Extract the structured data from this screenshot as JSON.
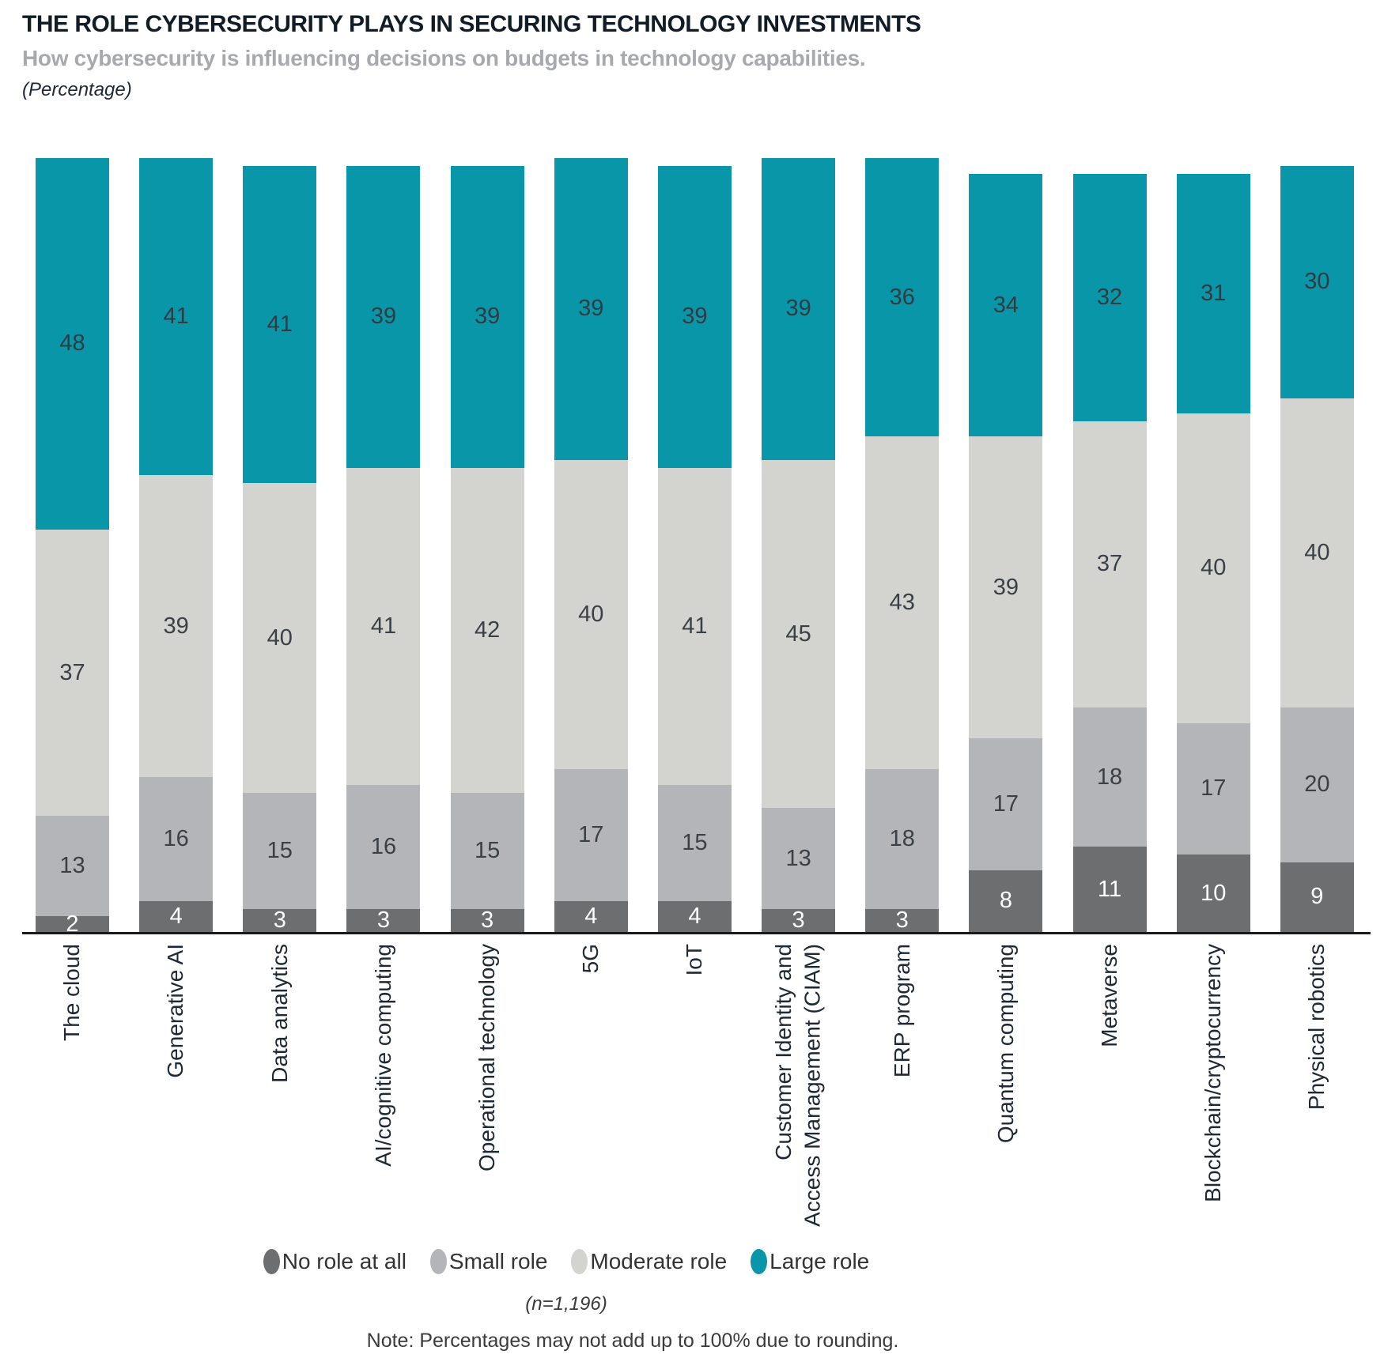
{
  "header": {
    "title": "THE ROLE CYBERSECURITY PLAYS IN SECURING TECHNOLOGY INVESTMENTS",
    "subtitle": "How cybersecurity is influencing decisions on budgets in technology capabilities.",
    "unit_note": "(Percentage)"
  },
  "chart_data": {
    "type": "bar",
    "stacked": true,
    "grid": false,
    "ylim": [
      0,
      100
    ],
    "legend_position": "bottom",
    "categories": [
      "The cloud",
      "Generative AI",
      "Data analytics",
      "AI/cognitive computing",
      "Operational technology",
      "5G",
      "IoT",
      "Customer Identity and\nAccess Management (CIAM)",
      "ERP program",
      "Quantum computing",
      "Metaverse",
      "Blockchain/cryptocurrency",
      "Physical robotics"
    ],
    "series": [
      {
        "name": "No role at all",
        "color": "#6c6e70",
        "text_color": "#ffffff",
        "values": [
          2,
          4,
          3,
          3,
          3,
          4,
          4,
          3,
          3,
          8,
          11,
          10,
          9
        ]
      },
      {
        "name": "Small role",
        "color": "#b3b5b8",
        "text_color": "#3a4046",
        "values": [
          13,
          16,
          15,
          16,
          15,
          17,
          15,
          13,
          18,
          17,
          18,
          17,
          20
        ]
      },
      {
        "name": "Moderate role",
        "color": "#d3d3d0",
        "text_color": "#3a4046",
        "values": [
          37,
          39,
          40,
          41,
          42,
          40,
          41,
          45,
          43,
          39,
          37,
          40,
          40
        ]
      },
      {
        "name": "Large role",
        "color": "#0996a8",
        "text_color": "#333b41",
        "values": [
          48,
          41,
          41,
          39,
          39,
          39,
          39,
          39,
          36,
          34,
          32,
          31,
          30
        ]
      }
    ],
    "sample_size": "(n=1,196)",
    "note": "Note: Percentages may not add up to 100% due to rounding."
  }
}
